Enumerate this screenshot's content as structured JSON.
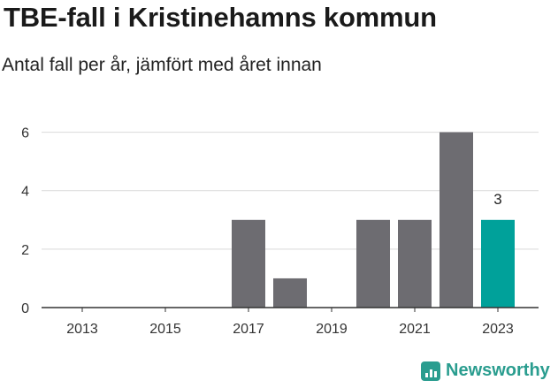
{
  "title": "TBE-fall i Kristinehamns kommun",
  "subtitle": "Antal fall per år, jämfört med året innan",
  "brand": {
    "name": "Newsworthy",
    "icon": "newsworthy-logo-icon",
    "color": "#2a9d8f"
  },
  "colors": {
    "bar": "#6d6c71",
    "highlight": "#00a19a",
    "grid": "#d9d9d9",
    "axis": "#333333"
  },
  "chart_data": {
    "type": "bar",
    "categories": [
      "2013",
      "2014",
      "2015",
      "2016",
      "2017",
      "2018",
      "2019",
      "2020",
      "2021",
      "2022",
      "2023"
    ],
    "values": [
      0,
      0,
      0,
      0,
      3,
      1,
      0,
      3,
      3,
      6,
      3
    ],
    "highlight_index": 10,
    "data_labels": [
      {
        "index": 10,
        "text": "3"
      }
    ],
    "x_tick_labels": [
      "2013",
      "2015",
      "2017",
      "2019",
      "2021",
      "2023"
    ],
    "y_ticks": [
      0,
      2,
      4,
      6
    ],
    "y_tick_labels": [
      "0",
      "2",
      "4",
      "6"
    ],
    "ylim": [
      0,
      6.2
    ],
    "grid": true,
    "xlabel": "",
    "ylabel": ""
  }
}
